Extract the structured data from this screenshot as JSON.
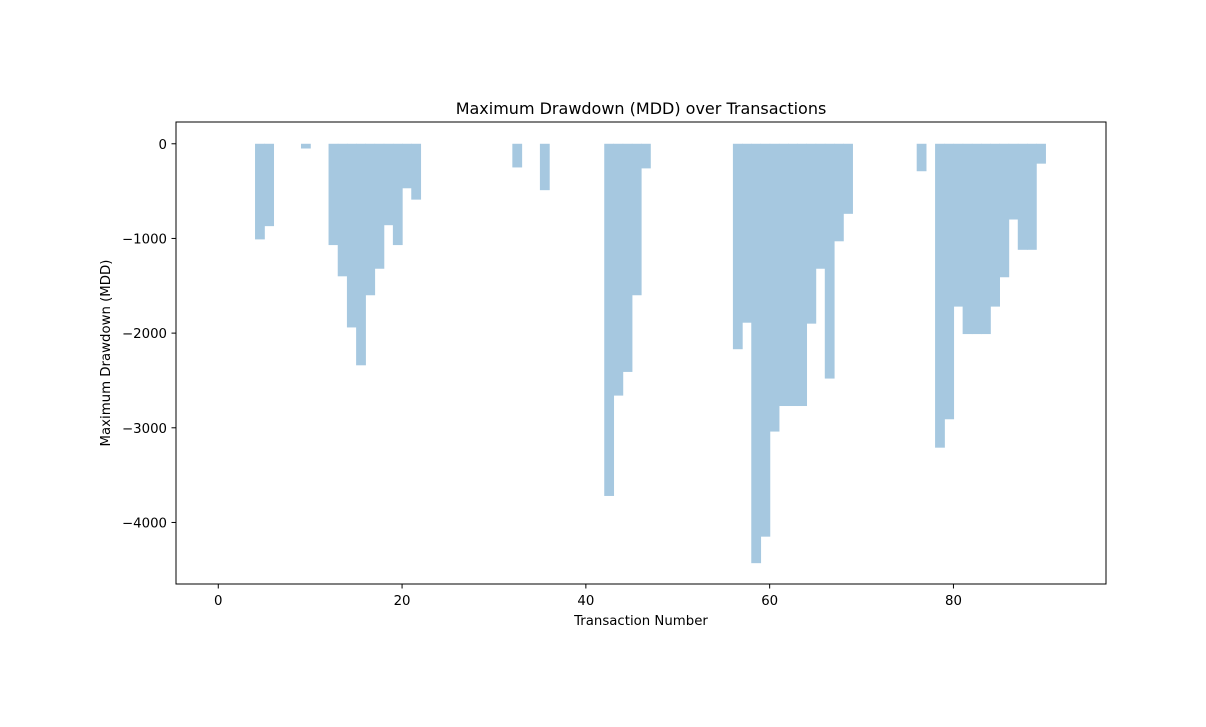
{
  "chart_data": {
    "type": "area",
    "title": "Maximum Drawdown (MDD) over Transactions",
    "xlabel": "Transaction Number",
    "ylabel": "Maximum Drawdown (MDD)",
    "xlim": [
      -4.6,
      96.6
    ],
    "ylim": [
      -4650,
      230
    ],
    "x_ticks": [
      0,
      20,
      40,
      60,
      80
    ],
    "y_ticks": [
      0,
      -1000,
      -2000,
      -3000,
      -4000
    ],
    "x_tick_labels": [
      "0",
      "20",
      "40",
      "60",
      "80"
    ],
    "y_tick_labels": [
      "0",
      "−1000",
      "−2000",
      "−3000",
      "−4000"
    ],
    "step": "post",
    "fill_color": "#a6c8e0",
    "grid": false,
    "legend": "none",
    "x": [
      0,
      1,
      2,
      3,
      4,
      5,
      6,
      7,
      8,
      9,
      10,
      11,
      12,
      13,
      14,
      15,
      16,
      17,
      18,
      19,
      20,
      21,
      22,
      23,
      24,
      25,
      26,
      27,
      28,
      29,
      30,
      31,
      32,
      33,
      34,
      35,
      36,
      37,
      38,
      39,
      40,
      41,
      42,
      43,
      44,
      45,
      46,
      47,
      48,
      49,
      50,
      51,
      52,
      53,
      54,
      55,
      56,
      57,
      58,
      59,
      60,
      61,
      62,
      63,
      64,
      65,
      66,
      67,
      68,
      69,
      70,
      71,
      72,
      73,
      74,
      75,
      76,
      77,
      78,
      79,
      80,
      81,
      82,
      83,
      84,
      85,
      86,
      87,
      88,
      89,
      90,
      91,
      92
    ],
    "values": [
      0,
      0,
      0,
      0,
      -1010,
      -870,
      0,
      0,
      0,
      -50,
      0,
      0,
      -1070,
      -1400,
      -1940,
      -2340,
      -1600,
      -1320,
      -860,
      -1070,
      -470,
      -590,
      0,
      0,
      0,
      0,
      0,
      0,
      0,
      0,
      0,
      0,
      -250,
      0,
      0,
      -490,
      0,
      0,
      0,
      0,
      0,
      0,
      -3720,
      -2660,
      -2410,
      -1600,
      -260,
      0,
      0,
      0,
      0,
      0,
      0,
      0,
      0,
      0,
      -2170,
      -1890,
      -4430,
      -4150,
      -3040,
      -2770,
      -2770,
      -2770,
      -1900,
      -1320,
      -2480,
      -1030,
      -740,
      0,
      0,
      0,
      0,
      0,
      0,
      0,
      -290,
      0,
      -3210,
      -2910,
      -1720,
      -2010,
      -2010,
      -2010,
      -1720,
      -1410,
      -800,
      -1120,
      -1120,
      -210,
      0,
      0,
      0
    ]
  }
}
